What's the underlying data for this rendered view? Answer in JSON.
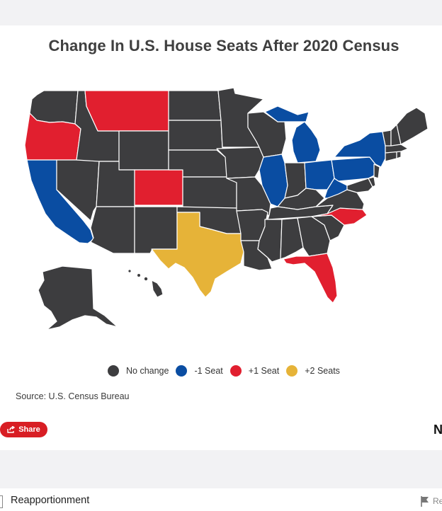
{
  "title": "Change In U.S. House Seats After 2020 Census",
  "legend": [
    {
      "label": "No change",
      "color": "#3d3d3f"
    },
    {
      "label": "-1 Seat",
      "color": "#0a4da2"
    },
    {
      "label": "+1 Seat",
      "color": "#e11f2f"
    },
    {
      "label": "+2 Seats",
      "color": "#e6b338"
    }
  ],
  "source": "Source: U.S. Census Bureau",
  "share_label": "Share",
  "logo_text": "N",
  "section_title": "Reapportionment",
  "report_label": "Re",
  "states": {
    "TX": "+2 Seats",
    "OR": "+1 Seat",
    "MT": "+1 Seat",
    "CO": "+1 Seat",
    "NC": "+1 Seat",
    "FL": "+1 Seat",
    "CA": "-1 Seat",
    "IL": "-1 Seat",
    "MI": "-1 Seat",
    "OH": "-1 Seat",
    "PA": "-1 Seat",
    "NY": "-1 Seat",
    "WV": "-1 Seat"
  }
}
